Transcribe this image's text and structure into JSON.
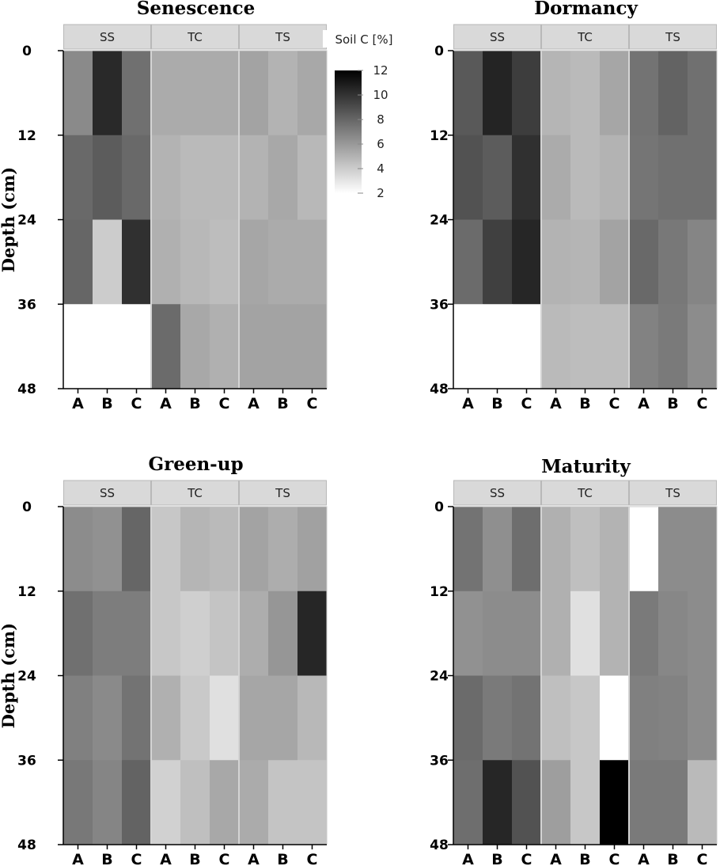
{
  "chart_data": {
    "type": "heatmap",
    "colorbar": {
      "title": "Soil C [%]",
      "range": [
        2,
        12
      ],
      "ticks": [
        "2",
        "4",
        "6",
        "8",
        "10",
        "12"
      ],
      "colors": [
        "#ffffff",
        "#000000"
      ]
    },
    "y_axis": {
      "label": "Depth (cm)",
      "ticks": [
        "0",
        "12",
        "24",
        "36",
        "48"
      ],
      "range": [
        0,
        48
      ]
    },
    "groups": [
      "SS",
      "TC",
      "TS"
    ],
    "reps": [
      "A",
      "B",
      "C"
    ],
    "depth_bins": [
      [
        0,
        12
      ],
      [
        12,
        24
      ],
      [
        24,
        36
      ],
      [
        36,
        48
      ]
    ],
    "panels": [
      {
        "title": "Senescence",
        "values": [
          [
            6.6,
            10.4,
            7.6,
            5.3,
            5.3,
            5.3,
            5.6,
            5.0,
            5.4
          ],
          [
            7.9,
            8.4,
            7.9,
            5.0,
            4.7,
            4.7,
            5.0,
            5.4,
            4.8
          ],
          [
            8.0,
            4.0,
            10.1,
            5.1,
            4.8,
            4.6,
            5.5,
            5.3,
            5.3
          ],
          [
            null,
            null,
            null,
            7.8,
            5.4,
            5.1,
            5.6,
            5.6,
            5.6
          ]
        ]
      },
      {
        "title": "Dormancy",
        "values": [
          [
            8.5,
            10.6,
            9.6,
            4.9,
            4.7,
            5.5,
            7.5,
            8.1,
            7.6
          ],
          [
            8.8,
            8.4,
            10.1,
            5.3,
            4.7,
            5.0,
            7.4,
            7.6,
            7.6
          ],
          [
            7.8,
            9.5,
            10.5,
            5.0,
            4.9,
            5.6,
            7.9,
            7.3,
            6.8
          ],
          [
            null,
            null,
            null,
            4.7,
            4.6,
            4.6,
            6.9,
            7.2,
            6.5
          ]
        ]
      },
      {
        "title": "Green-up",
        "values": [
          [
            6.5,
            6.3,
            8.0,
            4.2,
            4.9,
            4.7,
            5.6,
            5.2,
            5.7
          ],
          [
            7.6,
            7.1,
            7.1,
            4.2,
            3.9,
            4.3,
            5.2,
            6.1,
            10.5
          ],
          [
            7.0,
            6.6,
            7.5,
            5.1,
            4.1,
            3.2,
            5.5,
            5.5,
            4.8
          ],
          [
            7.3,
            6.8,
            8.1,
            3.8,
            4.5,
            5.4,
            5.3,
            4.3,
            4.3
          ]
        ]
      },
      {
        "title": "Maturity",
        "values": [
          [
            7.5,
            6.4,
            7.7,
            5.1,
            4.5,
            5.0,
            2.0,
            6.5,
            6.5
          ],
          [
            6.3,
            6.5,
            6.5,
            5.1,
            3.2,
            5.0,
            7.2,
            6.7,
            6.5
          ],
          [
            7.8,
            7.2,
            7.5,
            4.5,
            4.2,
            2.0,
            7.0,
            6.9,
            6.5
          ],
          [
            7.7,
            10.5,
            8.8,
            5.8,
            4.2,
            12.0,
            7.2,
            7.2,
            4.7
          ]
        ]
      }
    ]
  }
}
